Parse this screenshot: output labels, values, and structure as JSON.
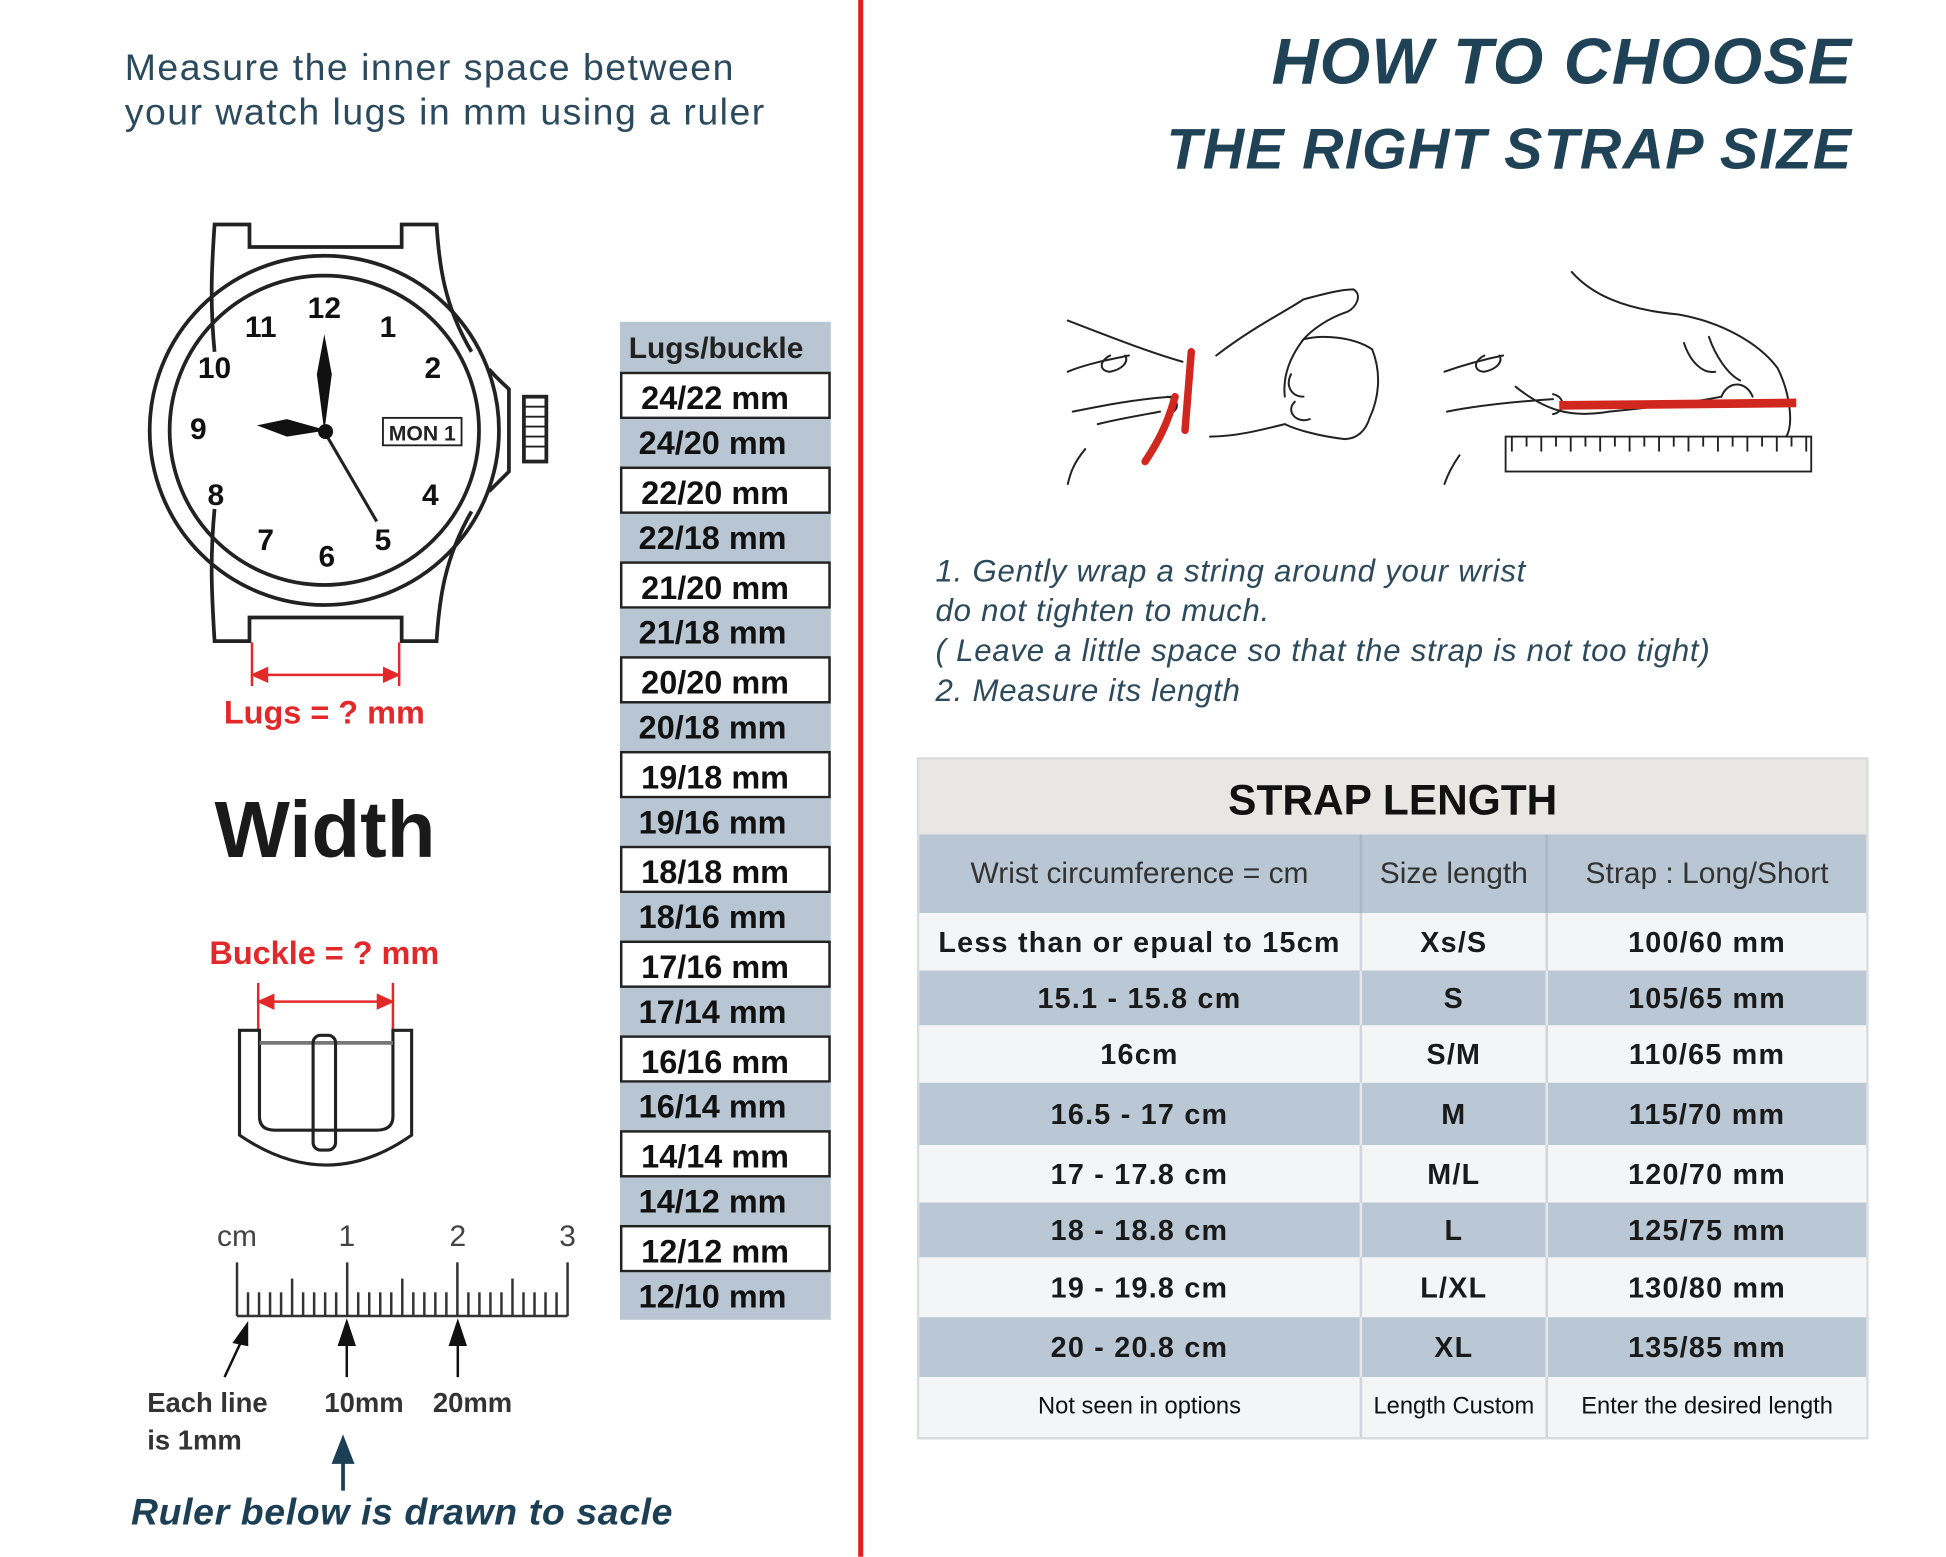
{
  "left": {
    "instruction_lines": [
      "Measure the inner space between",
      "your watch lugs in mm using a ruler"
    ],
    "watch": {
      "dial_numbers": [
        "12",
        "1",
        "2",
        "4",
        "5",
        "6",
        "7",
        "8",
        "9",
        "10",
        "11"
      ],
      "date_window": "MON 1"
    },
    "lugs_label": "Lugs = ? mm",
    "width_label": "Width",
    "buckle_label": "Buckle = ? mm",
    "ruler": {
      "unit_label": "cm",
      "cm_marks": [
        "1",
        "2",
        "3"
      ],
      "note_lines": [
        "Each line",
        "is 1mm"
      ],
      "mm_labels": [
        "10mm",
        "20mm"
      ],
      "caption": "Ruler below is drawn to sacle"
    },
    "lugs_table": {
      "header": "Lugs/buckle",
      "rows": [
        "24/22 mm",
        "24/20 mm",
        "22/20 mm",
        "22/18 mm",
        "21/20 mm",
        "21/18 mm",
        "20/20 mm",
        "20/18 mm",
        "19/18 mm",
        "19/16 mm",
        "18/18 mm",
        "18/16 mm",
        "17/16 mm",
        "17/14 mm",
        "16/16 mm",
        "16/14 mm",
        "14/14 mm",
        "14/12 mm",
        "12/12 mm",
        "12/10 mm"
      ]
    }
  },
  "right": {
    "title_lines": [
      "HOW TO CHOOSE",
      "THE RIGHT STRAP SIZE"
    ],
    "steps": [
      "1.  Gently wrap a string around your wrist",
      "do not tighten to much.",
      "( Leave a little space so that the strap is not too tight)",
      "2. Measure its length"
    ],
    "strap_table": {
      "title": "STRAP LENGTH",
      "columns": [
        "Wrist circumference = cm",
        "Size length",
        "Strap : Long/Short"
      ],
      "rows": [
        [
          "Less than or epual to 15cm",
          "Xs/S",
          "100/60 mm"
        ],
        [
          "15.1 - 15.8 cm",
          "S",
          "105/65 mm"
        ],
        [
          "16cm",
          "S/M",
          "110/65 mm"
        ],
        [
          "16.5 - 17 cm",
          "M",
          "115/70 mm"
        ],
        [
          "17 - 17.8 cm",
          "M/L",
          "120/70 mm"
        ],
        [
          "18 - 18.8 cm",
          "L",
          "125/75 mm"
        ],
        [
          "19 - 19.8 cm",
          "L/XL",
          "130/80 mm"
        ],
        [
          "20 - 20.8 cm",
          "XL",
          "135/85 mm"
        ],
        [
          "Not seen in options",
          "Length Custom",
          "Enter the desired length"
        ]
      ]
    }
  },
  "colors": {
    "divider": "#e0201c",
    "heading": "#1f4257",
    "measure_red": "#e3282a",
    "table_blue": "#b9c8d4",
    "table_light": "#f3f5f7",
    "table_title_bg": "#e9e7e4",
    "string_red": "#d0281f"
  }
}
